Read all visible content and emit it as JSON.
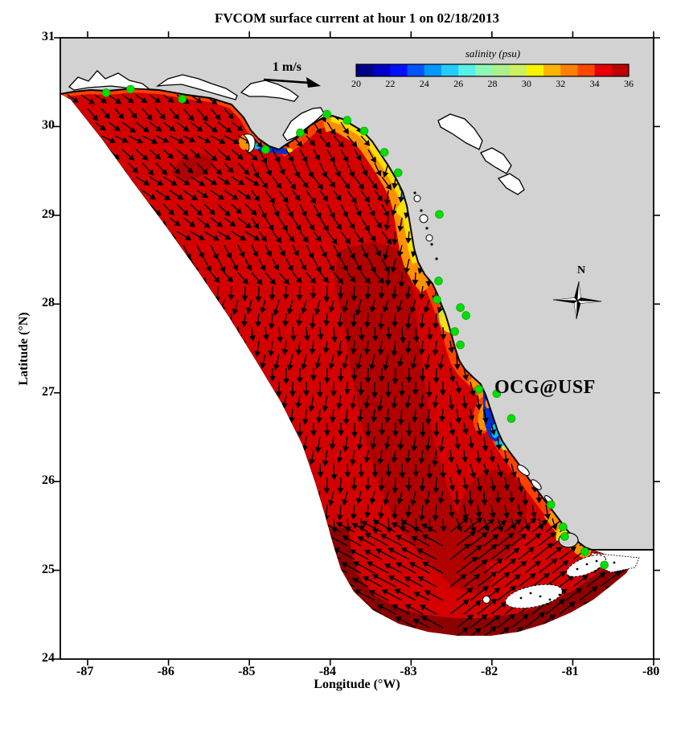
{
  "page": {
    "title": "FVCOM surface current at hour 1 on 02/18/2013"
  },
  "chart_data": {
    "type": "heatmap",
    "title": "FVCOM surface current at hour 1 on 02/18/2013",
    "xlabel": "Longitude (°W)",
    "ylabel": "Latitude (°N)",
    "xlim": [
      -87.34,
      -80
    ],
    "ylim": [
      24,
      31
    ],
    "grid": false,
    "xticks": [
      "-87",
      "-86",
      "-85",
      "-84",
      "-83",
      "-82",
      "-81",
      "-80"
    ],
    "xtick_values": [
      -87,
      -86,
      -85,
      -84,
      -83,
      -82,
      -81,
      -80
    ],
    "yticks": [
      "31",
      "30",
      "29",
      "28",
      "27",
      "26",
      "25",
      "24"
    ],
    "ytick_values": [
      31,
      30,
      29,
      28,
      27,
      26,
      25,
      24
    ],
    "colorbar": {
      "label": "salinity (psu)",
      "min": 20,
      "max": 36,
      "n_levels": 16,
      "ticks": [
        "20",
        "22",
        "24",
        "26",
        "28",
        "30",
        "32",
        "34",
        "36"
      ],
      "position": "top-right",
      "colors": [
        "#000089",
        "#0000c8",
        "#0010ff",
        "#0054ff",
        "#0098ff",
        "#22ccff",
        "#55f0e8",
        "#8cf8b4",
        "#aaf28c",
        "#ccf160",
        "#f8f400",
        "#ffb400",
        "#ff8000",
        "#ff4600",
        "#e80000",
        "#bd0000"
      ]
    },
    "quiver": {
      "scale_label": "1 m/s",
      "note": "surface current vectors on model grid, strongest flow along the southern open boundary"
    },
    "compass": {
      "label": "N"
    },
    "annotation": {
      "text": "OCG@USF",
      "color": "#ff0000"
    },
    "field_summary": {
      "interior_salinity_psu": [
        34,
        36
      ],
      "coastal_features": "low-salinity river plumes (20-30 psu) at Apalachicola Bay, Suwannee River, Springs Coast, Tampa Bay and Charlotte Harbor"
    },
    "stations": {
      "marker_color": "#00dd00",
      "points_lon_lat": [
        [
          -86.77,
          30.38
        ],
        [
          -86.47,
          30.42
        ],
        [
          -85.83,
          30.31
        ],
        [
          -84.8,
          29.74
        ],
        [
          -84.37,
          29.93
        ],
        [
          -84.04,
          30.14
        ],
        [
          -83.79,
          30.07
        ],
        [
          -83.58,
          29.95
        ],
        [
          -83.33,
          29.71
        ],
        [
          -83.16,
          29.48
        ],
        [
          -82.65,
          29.01
        ],
        [
          -82.66,
          28.26
        ],
        [
          -82.68,
          28.05
        ],
        [
          -82.39,
          27.96
        ],
        [
          -82.32,
          27.87
        ],
        [
          -82.46,
          27.69
        ],
        [
          -82.39,
          27.54
        ],
        [
          -82.16,
          27.04
        ],
        [
          -81.94,
          26.99
        ],
        [
          -81.76,
          26.71
        ],
        [
          -81.27,
          25.74
        ],
        [
          -81.12,
          25.49
        ],
        [
          -81.1,
          25.38
        ],
        [
          -80.85,
          25.21
        ],
        [
          -80.61,
          25.06
        ]
      ]
    }
  },
  "colors": {
    "background": "#ffffff",
    "land": "#d2d2d2",
    "coastline": "#000000",
    "sea_base": "#d40000",
    "sea_dark": "#b10000",
    "sea_darkest": "#8d0000",
    "band_orange_red": "#ff4000",
    "band_orange": "#ff9000",
    "band_yellow": "#ffe000",
    "band_yellowgreen": "#c8e838",
    "plume_cyan": "#00c0f0",
    "plume_blue": "#0030d8",
    "arrow": "#000000",
    "station": "#00dd00",
    "annotation": "#ff0000"
  }
}
